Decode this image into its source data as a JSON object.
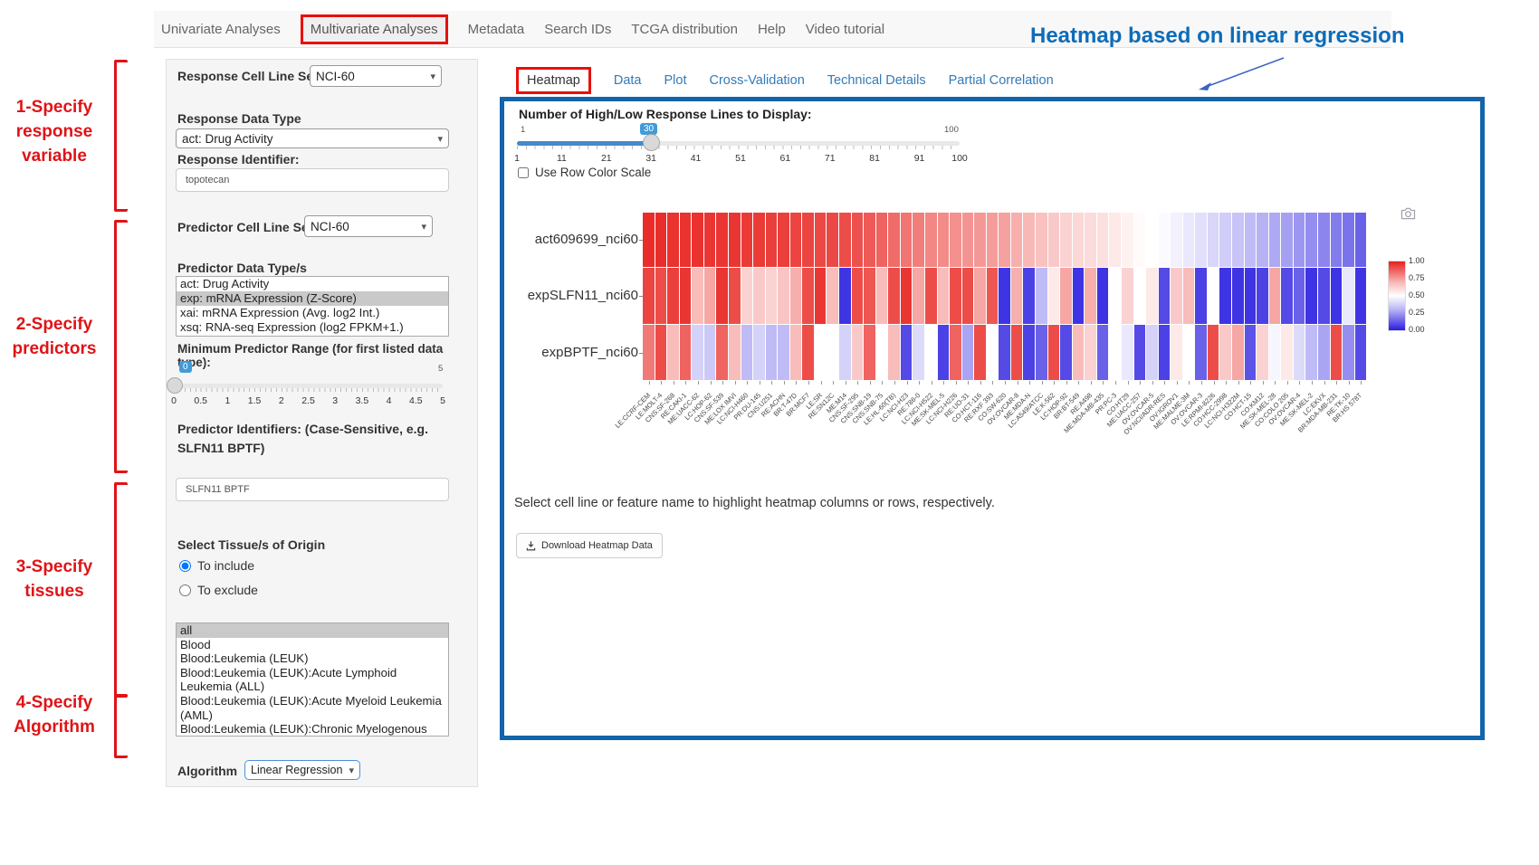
{
  "nav": {
    "items": [
      "Univariate Analyses",
      "Multivariate Analyses",
      "Metadata",
      "Search IDs",
      "TCGA distribution",
      "Help",
      "Video tutorial"
    ],
    "active": "Multivariate Analyses"
  },
  "annotation": {
    "title": "Heatmap based on linear regression",
    "steps": [
      "1-Specify response variable",
      "2-Specify predictors",
      "3-Specify tissues",
      "4-Specify Algorithm"
    ],
    "red_color": "#e01317",
    "title_color": "#0e6cb8"
  },
  "form": {
    "response_cell_line_set": {
      "label": "Response Cell Line Set",
      "value": "NCI-60"
    },
    "response_data_type": {
      "label": "Response Data Type",
      "value": "act: Drug Activity"
    },
    "response_identifier": {
      "label": "Response Identifier:",
      "value": "topotecan"
    },
    "predictor_cell_line_set": {
      "label": "Predictor Cell Line Set",
      "value": "NCI-60"
    },
    "predictor_data_types": {
      "label": "Predictor Data Type/s",
      "options": [
        {
          "label": "act: Drug Activity",
          "selected": false
        },
        {
          "label": "exp: mRNA Expression (Z-Score)",
          "selected": true
        },
        {
          "label": "xai: mRNA Expression (Avg. log2 Int.)",
          "selected": false
        },
        {
          "label": "xsq: RNA-seq Expression (log2 FPKM+1.)",
          "selected": false
        }
      ]
    },
    "min_predictor_range": {
      "label": "Minimum Predictor Range (for first listed data type):",
      "value": "0",
      "max_label": "5",
      "ticks": [
        "0",
        "0.5",
        "1",
        "1.5",
        "2",
        "2.5",
        "3",
        "3.5",
        "4",
        "4.5",
        "5"
      ]
    },
    "predictor_identifiers": {
      "label": "Predictor Identifiers: (Case-Sensitive, e.g. SLFN11 BPTF)",
      "value": "SLFN11 BPTF"
    },
    "tissue": {
      "label": "Select Tissue/s of Origin",
      "radios": [
        {
          "label": "To include",
          "selected": true
        },
        {
          "label": "To exclude",
          "selected": false
        }
      ],
      "options": [
        {
          "label": "all",
          "selected": true
        },
        {
          "label": "Blood",
          "selected": false
        },
        {
          "label": "Blood:Leukemia (LEUK)",
          "selected": false
        },
        {
          "label": "Blood:Leukemia (LEUK):Acute Lymphoid Leukemia (ALL)",
          "selected": false
        },
        {
          "label": "Blood:Leukemia (LEUK):Acute Myeloid Leukemia (AML)",
          "selected": false
        },
        {
          "label": "Blood:Leukemia (LEUK):Chronic Myelogenous Leukemia (CML)",
          "selected": false
        }
      ]
    },
    "algorithm": {
      "label": "Algorithm",
      "value": "Linear Regression"
    }
  },
  "tabs": {
    "items": [
      "Heatmap",
      "Data",
      "Plot",
      "Cross-Validation",
      "Technical Details",
      "Partial Correlation"
    ],
    "active": "Heatmap"
  },
  "heatmap_panel": {
    "slider": {
      "label": "Number of High/Low Response Lines to Display:",
      "min_label": "1",
      "max_label": "100",
      "value": "30",
      "ticks": [
        "1",
        "11",
        "21",
        "31",
        "41",
        "51",
        "61",
        "71",
        "81",
        "91",
        "100"
      ]
    },
    "row_scale_checkbox": "Use Row Color Scale",
    "note": "Select cell line or feature name to highlight heatmap columns or rows, respectively.",
    "download_button": "Download Heatmap Data",
    "panel_border_color": "#1264ab",
    "link_color": "#337ab7"
  },
  "chart_data": {
    "type": "heatmap",
    "x": [
      "LE:CCRF-CEM",
      "LE:MOLT-4",
      "CNS:SF-268",
      "RE:CAKI-1",
      "ME:UACC-62",
      "LC:HOP-62",
      "CNS:SF-539",
      "ME:LOX IMVI",
      "LC:NCI-H460",
      "PR:DU-145",
      "CNS:U251",
      "RE:ACHN",
      "BR:T-47D",
      "BR:MCF7",
      "LE:SR",
      "RE:SN12C",
      "ME:M14",
      "CNS:SF-295",
      "CNS:SNB-19",
      "CNS:SNB-75",
      "LE:HL-60(TB)",
      "LC:NCI-H23",
      "RE:786-0",
      "LC:NCI-H522",
      "ME:SK-MEL-5",
      "LC:NCI-H226",
      "RE:UO-31",
      "CO:HCT-116",
      "RE:RXF 393",
      "CO:SW-620",
      "OV:OVCAR-8",
      "ME:MDA-N",
      "LC:A549/ATCC",
      "LE:K-562",
      "LC:HOP-92",
      "BR:BT-549",
      "RE:A498",
      "ME:MDA-MB-435",
      "PR:PC-3",
      "CO:HT29",
      "ME:UACC-257",
      "OV:OVCAR-5",
      "OV:NCI/ADR-RES",
      "OV:IGROV1",
      "ME:MALME-3M",
      "OV:OVCAR-3",
      "LE:RPMI-8226",
      "CO:HCC-2998",
      "LC:NCI-H322M",
      "CO:HCT-15",
      "CO:KM12",
      "ME:SK-MEL-28",
      "CO:COLO 205",
      "OV:OVCAR-4",
      "ME:SK-MEL-2",
      "LC:EKVX",
      "BR:MDA-MB-231",
      "RE:TK-10",
      "BR:HS 578T"
    ],
    "rows": [
      "act609699_nci60",
      "expSLFN11_nci60",
      "expBPTF_nci60"
    ],
    "series": [
      {
        "name": "act609699_nci60",
        "values": [
          0.97,
          0.97,
          0.96,
          0.96,
          0.96,
          0.95,
          0.95,
          0.95,
          0.94,
          0.94,
          0.93,
          0.93,
          0.92,
          0.92,
          0.91,
          0.91,
          0.9,
          0.89,
          0.87,
          0.85,
          0.83,
          0.81,
          0.79,
          0.77,
          0.76,
          0.75,
          0.74,
          0.73,
          0.72,
          0.71,
          0.68,
          0.66,
          0.64,
          0.62,
          0.6,
          0.59,
          0.58,
          0.57,
          0.55,
          0.53,
          0.51,
          0.5,
          0.49,
          0.47,
          0.45,
          0.43,
          0.41,
          0.39,
          0.37,
          0.35,
          0.33,
          0.31,
          0.29,
          0.27,
          0.25,
          0.23,
          0.21,
          0.19,
          0.15
        ]
      },
      {
        "name": "expSLFN11_nci60",
        "values": [
          0.92,
          0.9,
          0.93,
          0.95,
          0.65,
          0.7,
          0.95,
          0.9,
          0.6,
          0.62,
          0.6,
          0.63,
          0.68,
          0.9,
          0.95,
          0.65,
          0.05,
          0.9,
          0.88,
          0.65,
          0.9,
          0.95,
          0.7,
          0.9,
          0.65,
          0.9,
          0.9,
          0.7,
          0.88,
          0.05,
          0.68,
          0.08,
          0.35,
          0.55,
          0.7,
          0.05,
          0.68,
          0.05,
          0.5,
          0.6,
          0.5,
          0.55,
          0.1,
          0.62,
          0.65,
          0.08,
          0.5,
          0.05,
          0.05,
          0.05,
          0.08,
          0.7,
          0.1,
          0.15,
          0.05,
          0.1,
          0.05,
          0.45,
          0.05
        ]
      },
      {
        "name": "expBPTF_nci60",
        "values": [
          0.8,
          0.9,
          0.65,
          0.85,
          0.4,
          0.38,
          0.85,
          0.65,
          0.35,
          0.4,
          0.35,
          0.35,
          0.65,
          0.9,
          0.5,
          0.5,
          0.4,
          0.62,
          0.85,
          0.5,
          0.65,
          0.1,
          0.42,
          0.5,
          0.08,
          0.85,
          0.3,
          0.9,
          0.5,
          0.1,
          0.9,
          0.08,
          0.15,
          0.9,
          0.1,
          0.65,
          0.6,
          0.15,
          0.5,
          0.45,
          0.1,
          0.4,
          0.08,
          0.55,
          0.5,
          0.15,
          0.9,
          0.62,
          0.7,
          0.12,
          0.6,
          0.48,
          0.55,
          0.42,
          0.35,
          0.3,
          0.9,
          0.25,
          0.1
        ]
      }
    ],
    "colorbar": {
      "ticks": [
        "1.00",
        "0.75",
        "0.50",
        "0.25",
        "0.00"
      ],
      "high_color": "#e8201c",
      "mid_color": "#ffffff",
      "low_color": "#2a1de0"
    },
    "title": "",
    "xlabel": "",
    "ylabel": "",
    "zlim": [
      0,
      1
    ],
    "legend_position": "right"
  }
}
